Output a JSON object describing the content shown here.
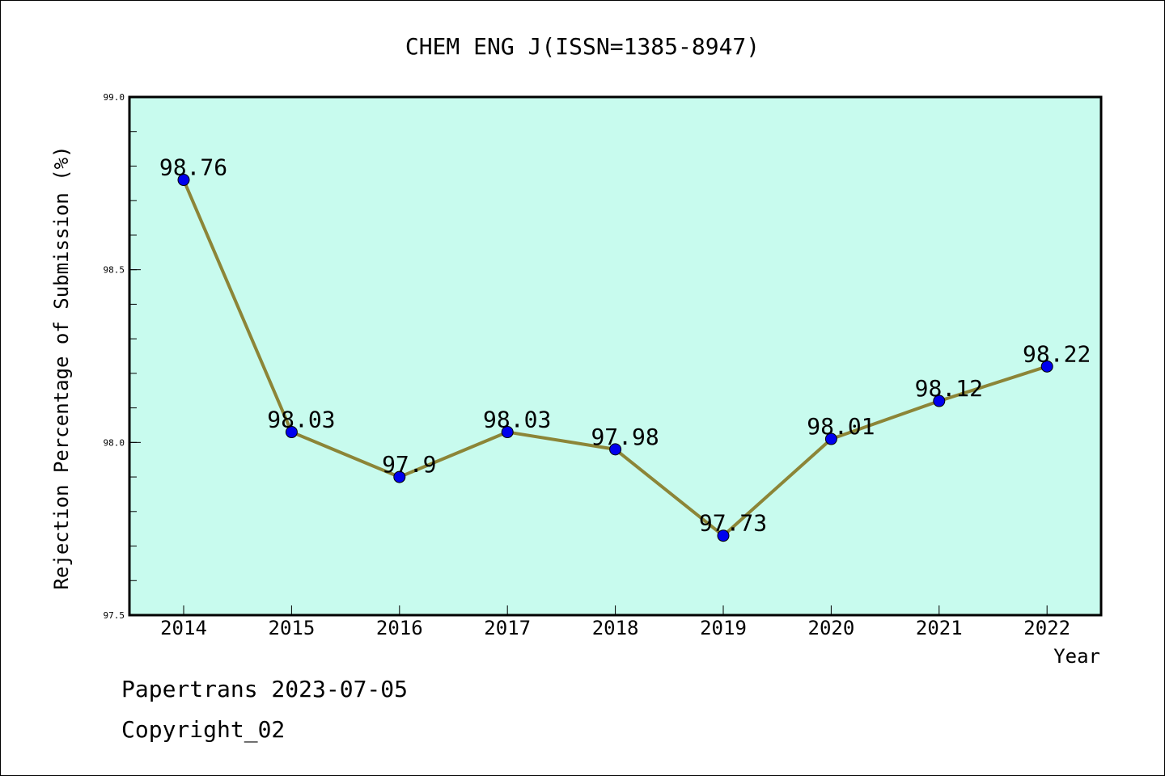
{
  "chart_data": {
    "type": "line",
    "title": "CHEM ENG J(ISSN=1385-8947)",
    "xlabel": "Year",
    "ylabel": "Rejection Percentage of Submission (%)",
    "x": [
      "2014",
      "2015",
      "2016",
      "2017",
      "2018",
      "2019",
      "2020",
      "2021",
      "2022"
    ],
    "values": [
      98.76,
      98.03,
      97.9,
      98.03,
      97.98,
      97.73,
      98.01,
      98.12,
      98.22
    ],
    "data_labels": [
      "98.76",
      "98.03",
      "97.9",
      "98.03",
      "97.98",
      "97.73",
      "98.01",
      "98.12",
      "98.22"
    ],
    "ylim": [
      97.5,
      99.0
    ],
    "yticks": [
      "97.5",
      "98.0",
      "98.5",
      "99.0"
    ],
    "grid": false,
    "legend": "none",
    "colors": {
      "plot_background": "#c8fbee",
      "line": "#8c8537",
      "marker": "#0000ee"
    }
  },
  "footer": {
    "line1": "Papertrans 2023-07-05",
    "line2": "Copyright_02"
  }
}
